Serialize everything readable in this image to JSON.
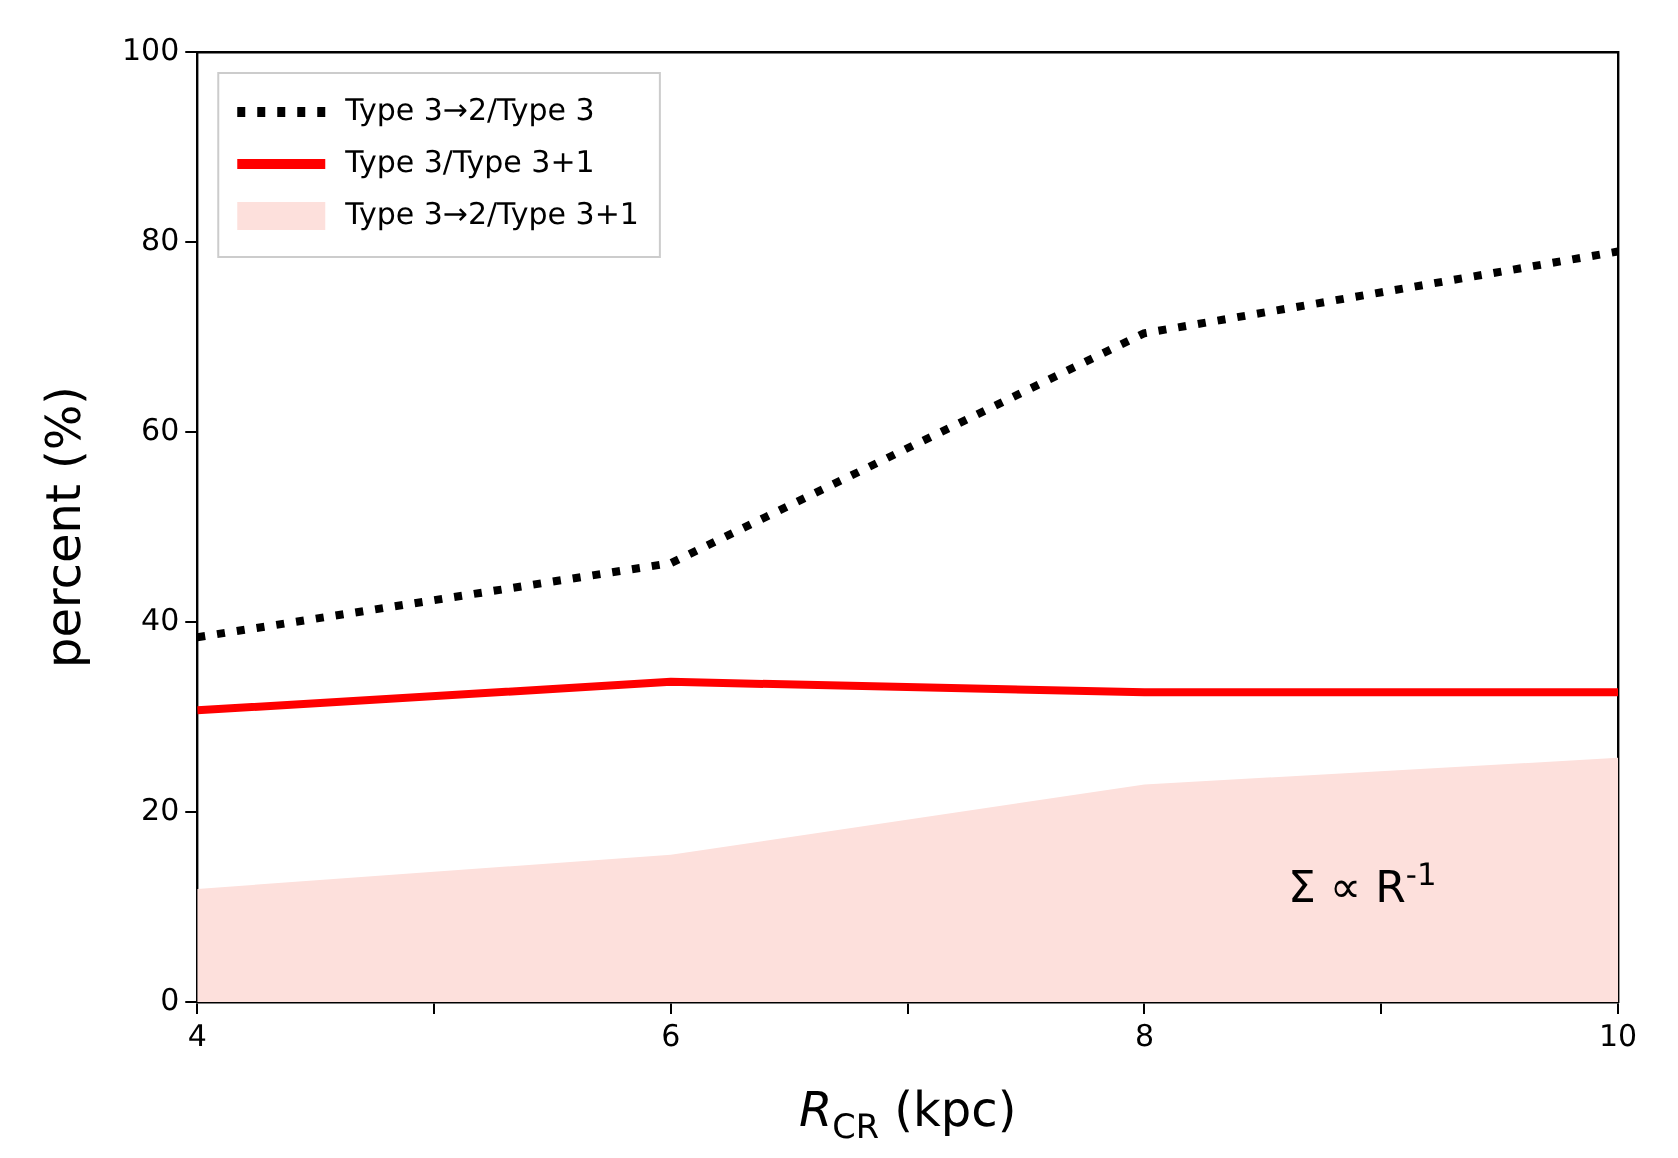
{
  "chart_data": {
    "type": "line",
    "xlabel": "R$_{CR}$ (kpc)",
    "ylabel": "percent (%)",
    "x": [
      4,
      6,
      8,
      10
    ],
    "series": [
      {
        "name": "Type 3→2/Type 3",
        "type": "line",
        "color": "#000000",
        "line_style": "dotted",
        "values": [
          38.4,
          46.2,
          70.4,
          79.0
        ]
      },
      {
        "name": "Type 3/Type 3+1",
        "type": "line",
        "color": "#ff0000",
        "line_style": "solid",
        "values": [
          30.7,
          33.7,
          32.6,
          32.6
        ]
      },
      {
        "name": "Type 3→2/Type 3+1",
        "type": "area",
        "color": "#fde0dc",
        "values": [
          11.9,
          15.5,
          22.9,
          25.7
        ]
      }
    ],
    "xlim": [
      4,
      10
    ],
    "xticks": [
      4,
      {
        "value": 5,
        "label": null
      },
      6,
      {
        "value": 7,
        "label": null
      },
      8,
      {
        "value": 9,
        "label": null
      },
      10
    ],
    "ylim": [
      0,
      100
    ],
    "yticks": [
      0,
      20,
      40,
      60,
      80,
      100
    ],
    "legend": "top left",
    "grid": false,
    "marker": "none",
    "annotations": [
      "Σ ∝ R$^{-1}$"
    ]
  }
}
